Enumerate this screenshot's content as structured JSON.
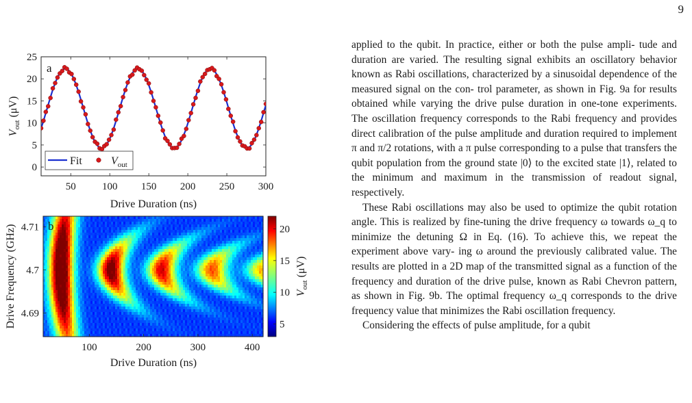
{
  "page_number": "9",
  "figure": {
    "panel_a": {
      "label": "a",
      "xlabel": "Drive Duration (ns)",
      "ylabel_main": "V",
      "ylabel_sub": "out",
      "ylabel_unit": " (μV)",
      "xticks": [
        "50",
        "100",
        "150",
        "200",
        "250",
        "300"
      ],
      "yticks": [
        "25",
        "20",
        "15",
        "10",
        "5",
        "0"
      ],
      "legend": {
        "fit_label": "Fit",
        "data_label_main": "V",
        "data_label_sub": "out"
      }
    },
    "panel_b": {
      "label": "b",
      "xlabel": "Drive Duration (ns)",
      "ylabel": "Drive Frequency (GHz)",
      "xticks": [
        "100",
        "200",
        "300",
        "400"
      ],
      "yticks": [
        "4.69",
        "4.7",
        "4.71"
      ],
      "colorbar_ticks": [
        "20",
        "15",
        "10",
        "5"
      ],
      "colorbar_label_main": "V",
      "colorbar_label_sub": "out",
      "colorbar_label_unit": " (μV)"
    }
  },
  "chart_data": [
    {
      "type": "line",
      "title": "",
      "xlabel": "Drive Duration (ns)",
      "ylabel": "V_out (μV)",
      "xlim": [
        12,
        300
      ],
      "ylim": [
        -2,
        25
      ],
      "legend_position": "bottom-left",
      "colors": {
        "fit": "#1a2fd0",
        "data": "#d7191c"
      },
      "series": [
        {
          "name": "Fit",
          "model": "sinusoid",
          "x_range": [
            12,
            300
          ],
          "amplitude": 9.0,
          "offset": 13.3,
          "period_ns": 93,
          "first_peak_ns": 43
        },
        {
          "name": "V_out",
          "x_start": 12,
          "x_step": 3,
          "count": 97,
          "noise_level": 0.4
        }
      ]
    },
    {
      "type": "heatmap",
      "title": "",
      "xlabel": "Drive Duration (ns)",
      "ylabel": "Drive Frequency (GHz)",
      "xlim": [
        15,
        420
      ],
      "ylim": [
        4.7125,
        4.6845
      ],
      "zlim": [
        3,
        22
      ],
      "z_label": "V_out (μV)",
      "colormap": "jet",
      "center_frequency_ghz": 4.7,
      "rabi_period_ns": 93,
      "fringe_positions_ns": [
        48,
        140,
        233,
        326,
        419
      ],
      "fringe_amplitudes": [
        1.0,
        0.88,
        0.74,
        0.62,
        0.52
      ]
    }
  ],
  "text": {
    "paragraphs": [
      [
        "applied to the qubit. In practice, either or both the pulse ampli-",
        "tude and duration are varied. The resulting signal exhibits an",
        "oscillatory behavior known as Rabi oscillations, characterized",
        "by a sinusoidal dependence of the measured signal on the con-",
        "trol parameter, as shown in Fig. 9a for results obtained while",
        "varying the drive pulse duration in one-tone experiments. The",
        "oscillation frequency corresponds to the Rabi frequency and",
        "provides direct calibration of the pulse amplitude and duration",
        "required to implement π and π/2 rotations, with a π pulse",
        "corresponding to a pulse that transfers the qubit population",
        "from the ground state |0⟩ to the excited state |1⟩, related to the",
        "minimum and maximum in the transmission of readout signal,",
        "respectively."
      ],
      [
        "These Rabi oscillations may also be used to optimize the",
        "qubit rotation angle. This is realized by fine-tuning the drive",
        "frequency ω towards ω_q to minimize the detuning Ω in Eq.",
        "(16). To achieve this, we repeat the experiment above vary-",
        "ing ω around the previously calibrated value. The results are",
        "plotted in a 2D map of the transmitted signal as a function of",
        "the frequency and duration of the drive pulse, known as Rabi",
        "Chevron pattern, as shown in Fig. 9b. The optimal frequency",
        "ω_q corresponds to the drive frequency value that minimizes",
        "the Rabi oscillation frequency."
      ],
      [
        "Considering the effects of pulse amplitude, for a qubit"
      ]
    ]
  }
}
